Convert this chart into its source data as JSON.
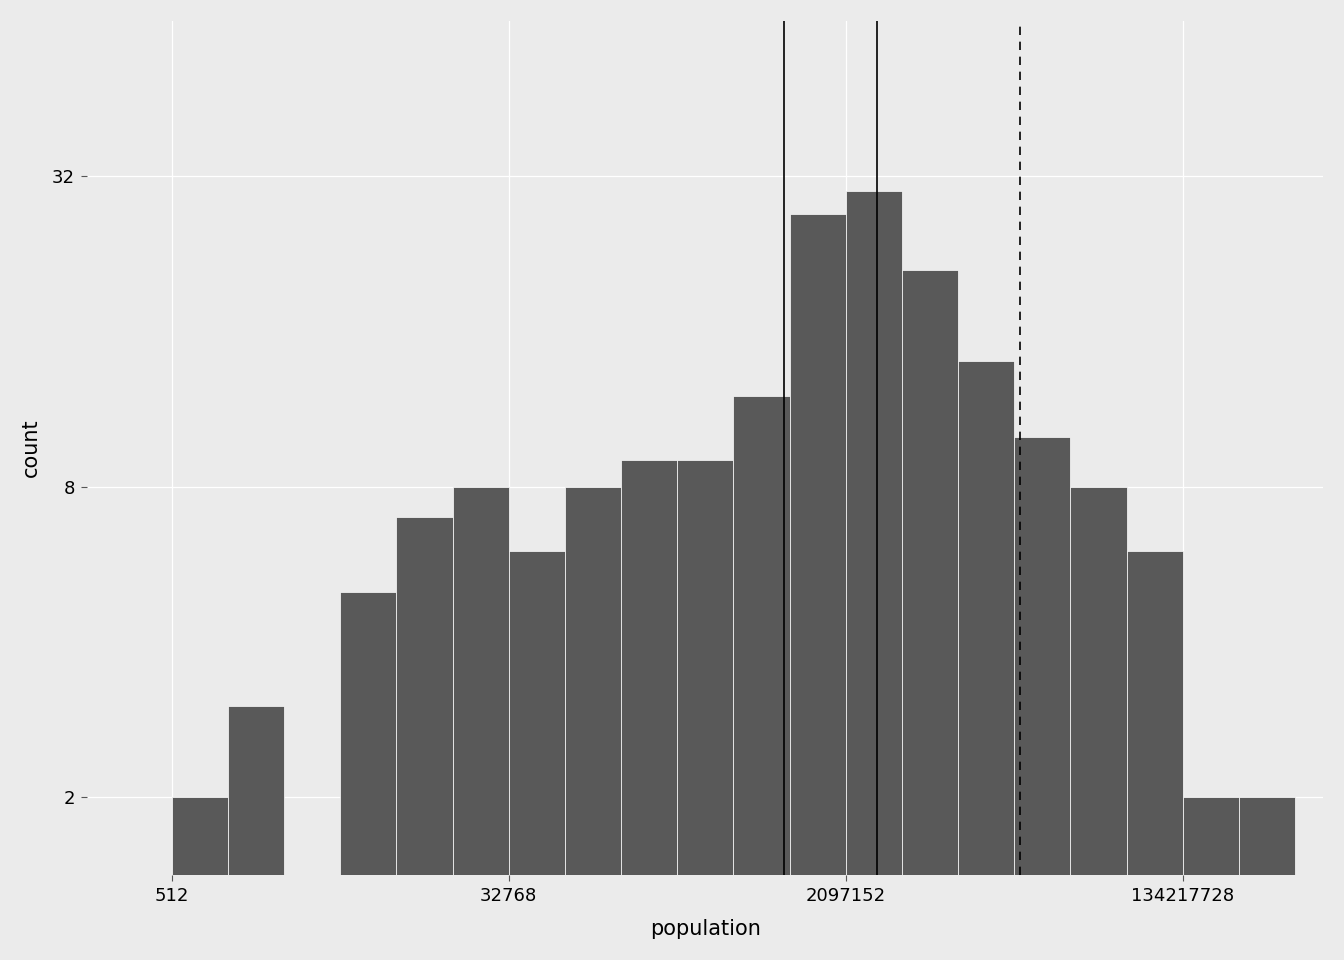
{
  "xlabel": "population",
  "ylabel": "count",
  "background_color": "#EBEBEB",
  "bar_color": "#595959",
  "bar_edge_color": "#FFFFFF",
  "bar_edge_width": 0.5,
  "x_ticks": [
    512,
    32768,
    2097152,
    134217728
  ],
  "x_tick_labels": [
    "512",
    "32768",
    "2097152",
    "134217728"
  ],
  "y_ticks": [
    2,
    8,
    32
  ],
  "y_tick_labels": [
    "2",
    "8",
    "32"
  ],
  "xlim_log2_min": 7.5,
  "xlim_log2_max": 29.5,
  "ylim_log2_min": 0.5,
  "ylim_log2_max": 6.0,
  "vline_solid1_log2": 19.9,
  "vline_solid2_log2": 21.55,
  "vline_dashed_log2": 24.1,
  "grid_color": "#FFFFFF",
  "grid_linewidth": 0.9,
  "bin_edges_log2": [
    9,
    10,
    11,
    12,
    13,
    14,
    15,
    16,
    17,
    18,
    19,
    20,
    21,
    22,
    23,
    24,
    25,
    26,
    27,
    28
  ],
  "bin_counts": [
    2,
    3,
    0,
    5,
    7,
    8,
    6,
    8,
    9,
    9,
    12,
    27,
    30,
    21,
    14,
    10,
    8,
    6,
    2,
    2
  ]
}
